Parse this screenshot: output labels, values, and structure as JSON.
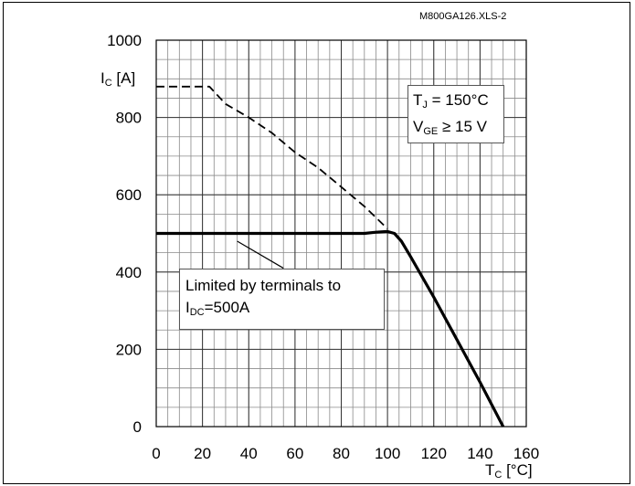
{
  "file_id": "M800GA126.XLS-2",
  "conditions": {
    "tj_symbol": "T",
    "tj_sub": "J",
    "tj_value": "= 150°C",
    "vge_symbol": "V",
    "vge_sub": "GE",
    "vge_value": "≥ 15 V"
  },
  "annotation": {
    "line1": "Limited by terminals to",
    "line2_symbol": "I",
    "line2_sub": "DC",
    "line2_value": "=500A"
  },
  "chart_data": {
    "type": "line",
    "title": "",
    "xlabel": {
      "symbol": "T",
      "sub": "C",
      "unit": "[°C]"
    },
    "ylabel": {
      "symbol": "I",
      "sub": "C",
      "unit": "[A]"
    },
    "xlim": [
      0,
      160
    ],
    "ylim": [
      0,
      1000
    ],
    "x_ticks": [
      0,
      20,
      40,
      60,
      80,
      100,
      120,
      140,
      160
    ],
    "y_ticks": [
      0,
      200,
      400,
      600,
      800,
      1000
    ],
    "x_tick_labels": [
      "0",
      "20",
      "40",
      "60",
      "80",
      "100",
      "120",
      "140",
      "160"
    ],
    "y_tick_labels": [
      "0",
      "200",
      "400",
      "600",
      "800",
      "1000"
    ],
    "grid": true,
    "grid_minor_x": 5,
    "grid_minor_y": 50,
    "series": [
      {
        "style": "dashed",
        "points": [
          [
            0,
            880
          ],
          [
            23,
            880
          ],
          [
            30,
            835
          ],
          [
            40,
            800
          ],
          [
            50,
            760
          ],
          [
            60,
            710
          ],
          [
            70,
            670
          ],
          [
            80,
            620
          ],
          [
            90,
            570
          ],
          [
            100,
            512
          ]
        ]
      },
      {
        "style": "solid",
        "points": [
          [
            0,
            500
          ],
          [
            90,
            500
          ],
          [
            95,
            503
          ],
          [
            100,
            505
          ],
          [
            103,
            500
          ],
          [
            106,
            480
          ],
          [
            110,
            440
          ],
          [
            120,
            335
          ],
          [
            130,
            225
          ],
          [
            140,
            115
          ],
          [
            150,
            0
          ]
        ]
      }
    ],
    "annotation_pointer": {
      "from": [
        35,
        480
      ],
      "to": [
        55,
        410
      ]
    }
  }
}
